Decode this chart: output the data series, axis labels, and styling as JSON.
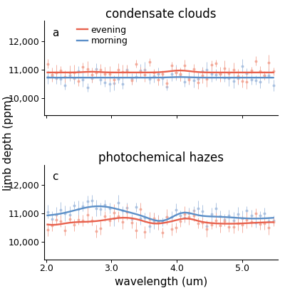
{
  "title_top": "condensate clouds",
  "title_bottom": "photochemical hazes",
  "label_a": "a",
  "label_c": "c",
  "legend_evening": "evening",
  "legend_morning": "morning",
  "xlabel": "wavelength (um)",
  "ylabel": "limb depth (ppm)",
  "xlim": [
    1.97,
    5.55
  ],
  "ylim": [
    9400,
    12700
  ],
  "yticks": [
    10000,
    11000,
    12000
  ],
  "ytick_labels": [
    "10,000",
    "11,000",
    "12,000"
  ],
  "xticks": [
    2.0,
    3.0,
    4.0,
    5.0
  ],
  "xtick_labels": [
    "2.0",
    "3.0",
    "4.0",
    "5.0"
  ],
  "color_evening": "#E8604C",
  "color_morning": "#5B8FC8",
  "color_evening_scatter": "#F2A898",
  "color_morning_scatter": "#A8C0E0",
  "fig_background": "#FFFFFF",
  "title_fontsize": 12,
  "label_fontsize": 11,
  "tick_fontsize": 9,
  "legend_fontsize": 9
}
